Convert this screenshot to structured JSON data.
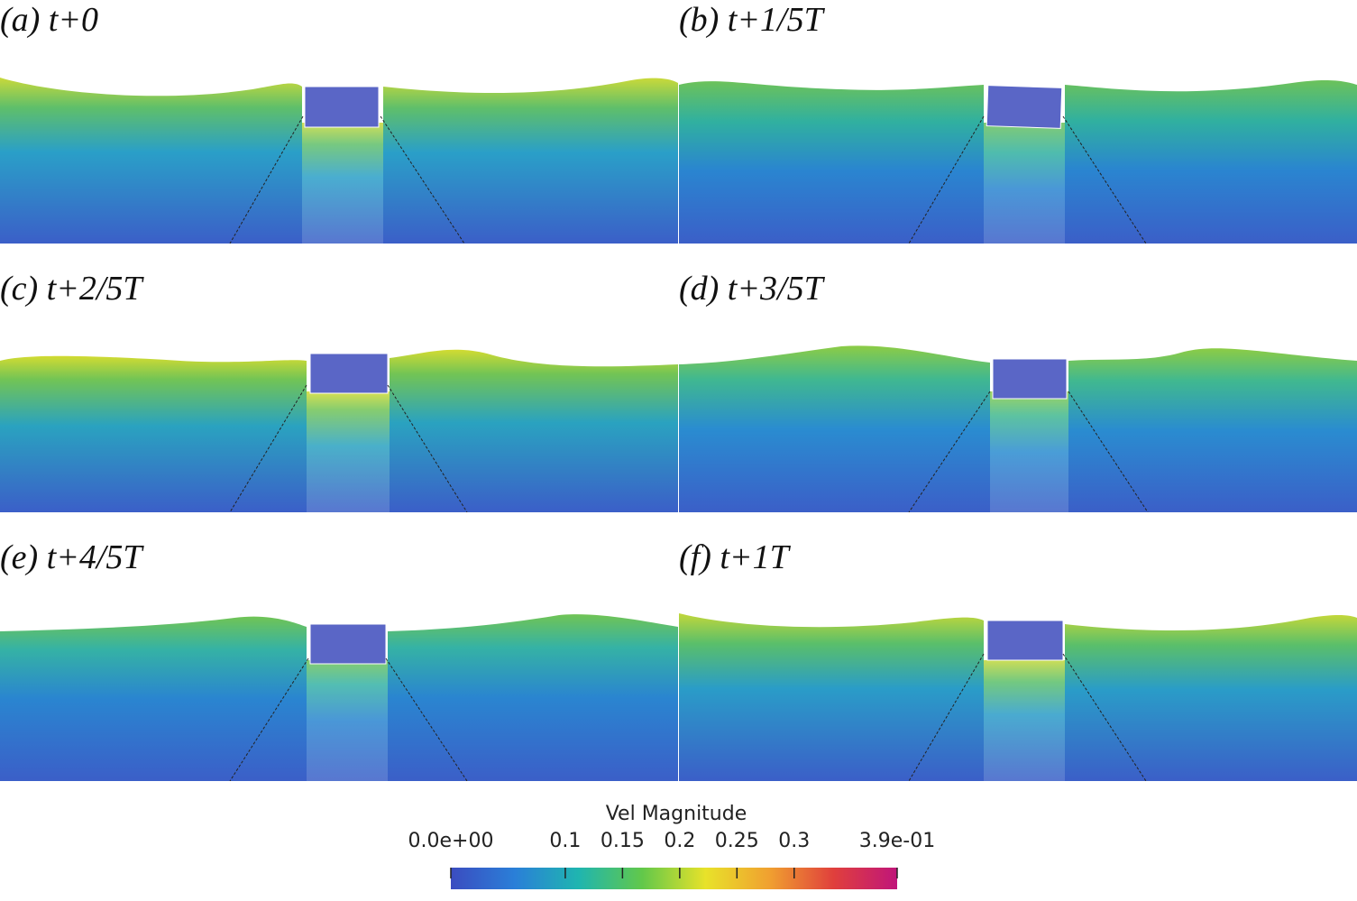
{
  "panels": [
    {
      "label": "(a) t+0"
    },
    {
      "label": "(b) t+1/5T"
    },
    {
      "label": "(c) t+2/5T"
    },
    {
      "label": "(d) t+3/5T"
    },
    {
      "label": "(e) t+4/5T"
    },
    {
      "label": "(f) t+1T"
    }
  ],
  "colorbar": {
    "title": "Vel Magnitude",
    "ticks": [
      "0.0e+00",
      "0.1",
      "0.15",
      "0.2",
      "0.25",
      "0.3",
      "3.9e-01"
    ],
    "tick_values": [
      0.0,
      0.1,
      0.15,
      0.2,
      0.25,
      0.3,
      0.39
    ],
    "range": [
      0.0,
      0.39
    ],
    "colormap": [
      "#3b4cc0",
      "#2a7fd8",
      "#1fb5b0",
      "#62c84a",
      "#e8e22a",
      "#f0a030",
      "#e0403c",
      "#c0157a"
    ]
  }
}
